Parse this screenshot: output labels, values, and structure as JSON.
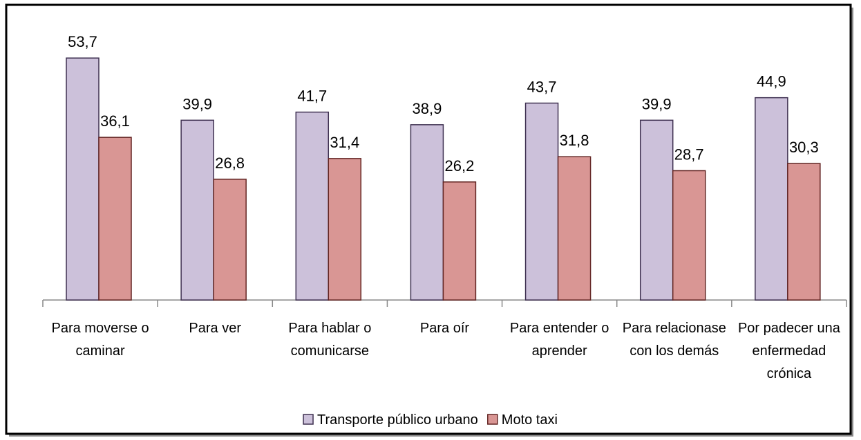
{
  "chart_data": {
    "type": "bar",
    "categories": [
      "Para moverse o caminar",
      "Para ver",
      "Para hablar o comunicarse",
      "Para oír",
      "Para entender o aprender",
      "Para relacionase con los demás",
      "Por padecer una enfermedad crónica"
    ],
    "series": [
      {
        "name": "Transporte público urbano",
        "color": "#ccc1da",
        "stroke": "#3f3151",
        "values": [
          53.7,
          39.9,
          41.7,
          38.9,
          43.7,
          39.9,
          44.9
        ],
        "value_labels": [
          "53,7",
          "39,9",
          "41,7",
          "38,9",
          "43,7",
          "39,9",
          "44,9"
        ]
      },
      {
        "name": "Moto taxi",
        "color": "#d99694",
        "stroke": "#632523",
        "values": [
          36.1,
          26.8,
          31.4,
          26.2,
          31.8,
          28.7,
          30.3
        ],
        "value_labels": [
          "36,1",
          "26,8",
          "31,4",
          "26,2",
          "31,8",
          "28,7",
          "30,3"
        ]
      }
    ],
    "ylim": [
      0,
      60
    ]
  }
}
